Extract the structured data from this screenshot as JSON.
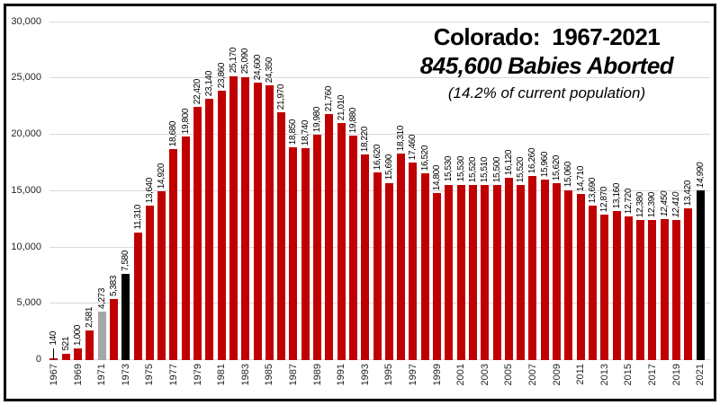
{
  "title": {
    "line1": "Colorado:  1967-2021",
    "line2": "845,600 Babies Aborted",
    "line3": "(14.2% of current population)"
  },
  "colors": {
    "red": "#C00000",
    "gray": "#A6A6A6",
    "black": "#000000",
    "gridline": "#D9D9D9",
    "border": "#000000"
  },
  "chart_data": {
    "type": "bar",
    "title": "Colorado:  1967-2021",
    "subtitle": "845,600 Babies Aborted",
    "note": "(14.2% of current population)",
    "ylim": [
      0,
      30000
    ],
    "ytick_interval": 5000,
    "ytick_labels": [
      "0",
      "5,000",
      "10,000",
      "15,000",
      "20,000",
      "25,000",
      "30,000"
    ],
    "grid": true,
    "x_tick_years_labeled": "odd years only 1967-2021",
    "points": [
      {
        "year": 1967,
        "value": 140,
        "color": "red",
        "leader": true
      },
      {
        "year": 1968,
        "value": 521,
        "color": "red"
      },
      {
        "year": 1969,
        "value": 1000,
        "color": "red"
      },
      {
        "year": 1970,
        "value": 2581,
        "color": "red"
      },
      {
        "year": 1971,
        "value": 4273,
        "color": "gray"
      },
      {
        "year": 1972,
        "value": 5383,
        "color": "red"
      },
      {
        "year": 1973,
        "value": 7580,
        "color": "black"
      },
      {
        "year": 1974,
        "value": 11310,
        "color": "red"
      },
      {
        "year": 1975,
        "value": 13640,
        "color": "red"
      },
      {
        "year": 1976,
        "value": 14920,
        "color": "red"
      },
      {
        "year": 1977,
        "value": 18680,
        "color": "red"
      },
      {
        "year": 1978,
        "value": 19800,
        "color": "red"
      },
      {
        "year": 1979,
        "value": 22420,
        "color": "red"
      },
      {
        "year": 1980,
        "value": 23140,
        "color": "red"
      },
      {
        "year": 1981,
        "value": 23860,
        "color": "red"
      },
      {
        "year": 1982,
        "value": 25170,
        "color": "red"
      },
      {
        "year": 1983,
        "value": 25090,
        "color": "red"
      },
      {
        "year": 1984,
        "value": 24600,
        "color": "red"
      },
      {
        "year": 1985,
        "value": 24350,
        "color": "red"
      },
      {
        "year": 1986,
        "value": 21970,
        "color": "red"
      },
      {
        "year": 1987,
        "value": 18850,
        "color": "red"
      },
      {
        "year": 1988,
        "value": 18740,
        "color": "red"
      },
      {
        "year": 1989,
        "value": 19980,
        "color": "red"
      },
      {
        "year": 1990,
        "value": 21760,
        "color": "red"
      },
      {
        "year": 1991,
        "value": 21010,
        "color": "red"
      },
      {
        "year": 1992,
        "value": 19880,
        "color": "red"
      },
      {
        "year": 1993,
        "value": 18220,
        "color": "red"
      },
      {
        "year": 1994,
        "value": 16620,
        "color": "red"
      },
      {
        "year": 1995,
        "value": 15690,
        "color": "red"
      },
      {
        "year": 1996,
        "value": 18310,
        "color": "red"
      },
      {
        "year": 1997,
        "value": 17460,
        "color": "red"
      },
      {
        "year": 1998,
        "value": 16520,
        "color": "red"
      },
      {
        "year": 1999,
        "value": 14800,
        "color": "red"
      },
      {
        "year": 2000,
        "value": 15530,
        "color": "red"
      },
      {
        "year": 2001,
        "value": 15530,
        "color": "red"
      },
      {
        "year": 2002,
        "value": 15520,
        "color": "red"
      },
      {
        "year": 2003,
        "value": 15510,
        "color": "red"
      },
      {
        "year": 2004,
        "value": 15500,
        "color": "red"
      },
      {
        "year": 2005,
        "value": 16120,
        "color": "red"
      },
      {
        "year": 2006,
        "value": 15520,
        "color": "red"
      },
      {
        "year": 2007,
        "value": 16260,
        "color": "red"
      },
      {
        "year": 2008,
        "value": 15960,
        "color": "red"
      },
      {
        "year": 2009,
        "value": 15620,
        "color": "red"
      },
      {
        "year": 2010,
        "value": 15060,
        "color": "red"
      },
      {
        "year": 2011,
        "value": 14710,
        "color": "red"
      },
      {
        "year": 2012,
        "value": 13690,
        "color": "red"
      },
      {
        "year": 2013,
        "value": 12870,
        "color": "red"
      },
      {
        "year": 2014,
        "value": 13160,
        "color": "red"
      },
      {
        "year": 2015,
        "value": 12720,
        "color": "red"
      },
      {
        "year": 2016,
        "value": 12380,
        "color": "red"
      },
      {
        "year": 2017,
        "value": 12390,
        "color": "red"
      },
      {
        "year": 2018,
        "value": 12450,
        "color": "red",
        "italic": true
      },
      {
        "year": 2019,
        "value": 12410,
        "color": "red",
        "italic": true
      },
      {
        "year": 2020,
        "value": 13420,
        "color": "red"
      },
      {
        "year": 2021,
        "value": 14990,
        "color": "black",
        "italic": true
      }
    ]
  }
}
